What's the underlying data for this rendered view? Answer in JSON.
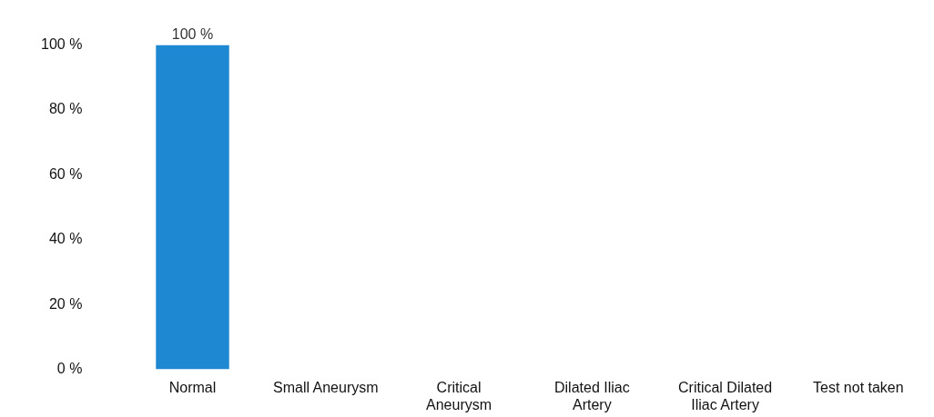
{
  "chart_data": {
    "type": "bar",
    "categories": [
      "Normal",
      "Small Aneurysm",
      "Critical Aneurysm",
      "Dilated Iliac Artery",
      "Critical Dilated Iliac Artery",
      "Test not taken"
    ],
    "values": [
      100,
      0,
      0,
      0,
      0,
      0
    ],
    "value_labels": [
      "100 %",
      null,
      null,
      null,
      null,
      null
    ],
    "color": "#1f88d2",
    "ylim": [
      0,
      100
    ],
    "yticks": [
      {
        "value": 0,
        "label": "0 %"
      },
      {
        "value": 20,
        "label": "20 %"
      },
      {
        "value": 40,
        "label": "40 %"
      },
      {
        "value": 60,
        "label": "60 %"
      },
      {
        "value": 80,
        "label": "80 %"
      },
      {
        "value": 100,
        "label": "100 %"
      }
    ],
    "grid": false,
    "legend": false
  }
}
